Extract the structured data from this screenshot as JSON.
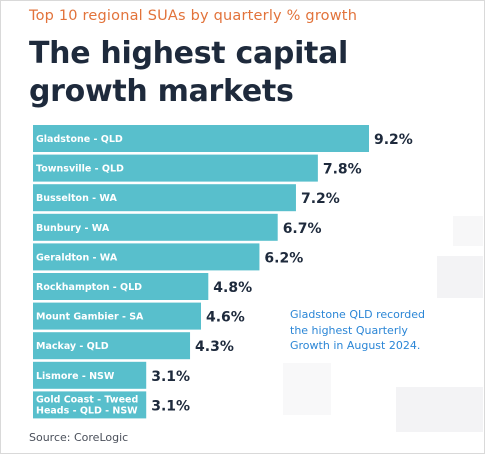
{
  "header": {
    "kicker": "Top 10 regional SUAs by quarterly % growth",
    "title_line1": "The highest capital",
    "title_line2": "growth markets"
  },
  "callout": {
    "line1": "Gladstone QLD recorded",
    "line2": "the highest Quarterly",
    "line3": "Growth in August 2024."
  },
  "source": "Source: CoreLogic",
  "colors": {
    "bar": "#58bfcc",
    "label_text": "#ffffff",
    "value_text": "#1e2a3c",
    "accent": "#e2733b",
    "callout": "#2b86d6"
  },
  "chart_data": {
    "type": "bar",
    "orientation": "horizontal",
    "categories": [
      "Gladstone - QLD",
      "Townsville - QLD",
      "Busselton - WA",
      "Bunbury - WA",
      "Geraldton - WA",
      "Rockhampton - QLD",
      "Mount Gambier - SA",
      "Mackay - QLD",
      "Lismore - NSW",
      "Gold Coast - Tweed Heads - QLD - NSW"
    ],
    "category_lines": [
      [
        "Gladstone - QLD"
      ],
      [
        "Townsville - QLD"
      ],
      [
        "Busselton - WA"
      ],
      [
        "Bunbury - WA"
      ],
      [
        "Geraldton - WA"
      ],
      [
        "Rockhampton - QLD"
      ],
      [
        "Mount Gambier - SA"
      ],
      [
        "Mackay - QLD"
      ],
      [
        "Lismore - NSW"
      ],
      [
        "Gold Coast - Tweed",
        "Heads - QLD - NSW"
      ]
    ],
    "values": [
      9.2,
      7.8,
      7.2,
      6.7,
      6.2,
      4.8,
      4.6,
      4.3,
      3.1,
      3.1
    ],
    "value_labels": [
      "9.2%",
      "7.8%",
      "7.2%",
      "6.7%",
      "6.2%",
      "4.8%",
      "4.6%",
      "4.3%",
      "3.1%",
      "3.1%"
    ],
    "unit": "%",
    "xlim": [
      0,
      9.2
    ],
    "grid": false,
    "legend": "none"
  }
}
